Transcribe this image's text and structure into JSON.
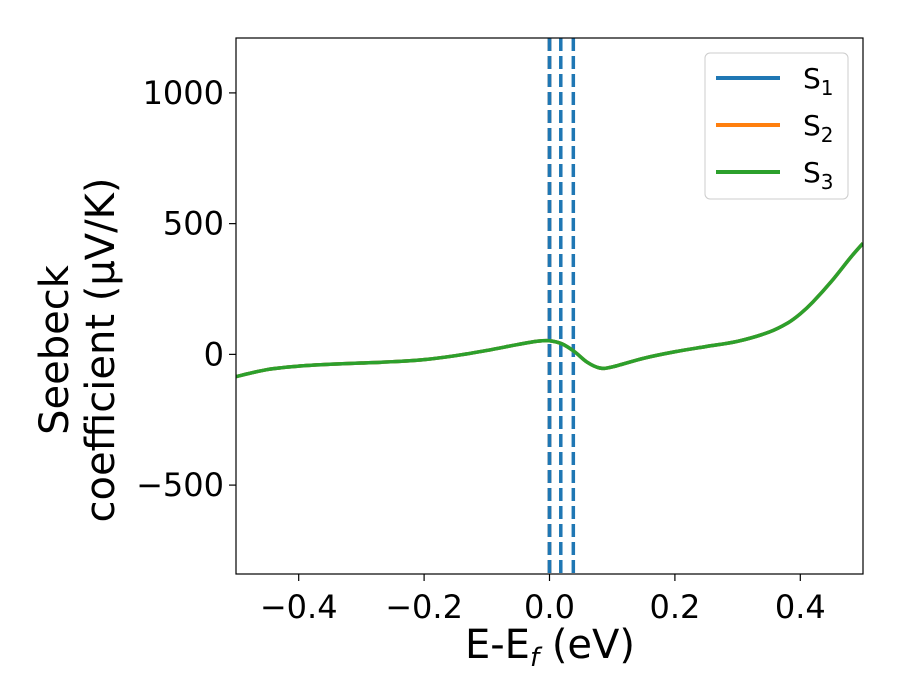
{
  "chart_data": {
    "type": "line",
    "title": "",
    "xlabel": "E-E",
    "xlabel_sub": "f",
    "xlabel_unit": " (eV)",
    "ylabel_line1": "Seebeck",
    "ylabel_line2": "coefficient  (μV/K)",
    "xlim": [
      -0.5,
      0.5
    ],
    "ylim": [
      -840,
      1210
    ],
    "xticks": [
      -0.4,
      -0.2,
      0.0,
      0.2,
      0.4
    ],
    "xtick_labels": [
      "−0.4",
      "−0.2",
      "0.0",
      "0.2",
      "0.4"
    ],
    "yticks": [
      -500,
      0,
      500,
      1000
    ],
    "ytick_labels": [
      "−500",
      "0",
      "500",
      "1000"
    ],
    "grid": false,
    "legend_position": "top-right",
    "vlines": [
      {
        "x": 0.0,
        "color": "#000000",
        "style": "dashed"
      },
      {
        "x": 0.0,
        "color": "#1f77b4",
        "style": "dashed"
      },
      {
        "x": 0.018,
        "color": "#1f77b4",
        "style": "dashed"
      },
      {
        "x": 0.038,
        "color": "#1f77b4",
        "style": "dashed"
      }
    ],
    "x": [
      -0.5,
      -0.45,
      -0.4,
      -0.35,
      -0.3,
      -0.25,
      -0.2,
      -0.15,
      -0.1,
      -0.05,
      -0.02,
      0.0,
      0.02,
      0.04,
      0.06,
      0.08,
      0.1,
      0.15,
      0.2,
      0.25,
      0.3,
      0.35,
      0.38,
      0.4,
      0.42,
      0.45,
      0.48,
      0.5
    ],
    "series": [
      {
        "name": "S",
        "sub": "1",
        "color": "#1f77b4",
        "values": [
          -85,
          -58,
          -45,
          -38,
          -33,
          -28,
          -20,
          -5,
          15,
          38,
          50,
          52,
          40,
          10,
          -30,
          -52,
          -48,
          -15,
          10,
          30,
          50,
          85,
          120,
          155,
          200,
          280,
          370,
          425
        ]
      },
      {
        "name": "S",
        "sub": "2",
        "color": "#ff7f0e",
        "values": [
          -85,
          -58,
          -45,
          -38,
          -33,
          -28,
          -20,
          -5,
          15,
          38,
          50,
          52,
          40,
          10,
          -30,
          -52,
          -48,
          -15,
          10,
          30,
          50,
          85,
          120,
          155,
          200,
          280,
          370,
          425
        ]
      },
      {
        "name": "S",
        "sub": "3",
        "color": "#2ca02c",
        "values": [
          -85,
          -58,
          -45,
          -38,
          -33,
          -28,
          -20,
          -5,
          15,
          38,
          50,
          52,
          40,
          10,
          -30,
          -52,
          -48,
          -15,
          10,
          30,
          50,
          85,
          120,
          155,
          200,
          280,
          370,
          425
        ]
      }
    ]
  }
}
